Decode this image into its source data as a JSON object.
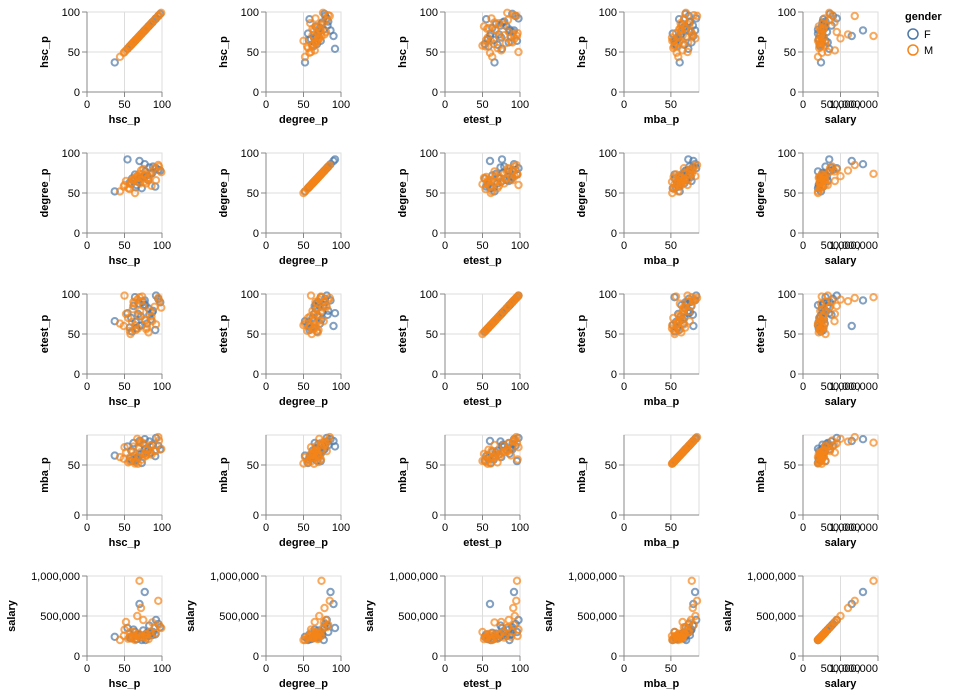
{
  "chart_data": {
    "type": "scatter",
    "layout": "scatter-matrix",
    "fields": [
      "hsc_p",
      "degree_p",
      "etest_p",
      "mba_p",
      "salary"
    ],
    "domains": {
      "hsc_p": {
        "min": 0,
        "max": 100,
        "ticks": [
          0,
          50,
          100
        ],
        "tick_labels": [
          "0",
          "50",
          "100"
        ]
      },
      "degree_p": {
        "min": 0,
        "max": 100,
        "ticks": [
          0,
          50,
          100
        ],
        "tick_labels": [
          "0",
          "50",
          "100"
        ]
      },
      "etest_p": {
        "min": 0,
        "max": 100,
        "ticks": [
          0,
          50,
          100
        ],
        "tick_labels": [
          "0",
          "50",
          "100"
        ]
      },
      "mba_p": {
        "min": 0,
        "max": 80,
        "ticks": [
          0,
          50
        ],
        "tick_labels": [
          "0",
          "50"
        ]
      },
      "salary": {
        "min": 0,
        "max": 1000000,
        "ticks": [
          0,
          500000,
          1000000
        ],
        "tick_labels": [
          "0",
          "500,000",
          "1,000,000"
        ]
      }
    },
    "legend": {
      "title": "gender",
      "position": "top-right",
      "items": [
        {
          "label": "F",
          "color": "#4c78a8"
        },
        {
          "label": "M",
          "color": "#f58518"
        }
      ]
    },
    "grid": true,
    "mark": "open-circle",
    "records": [
      {
        "gender": "F",
        "hsc_p": 91,
        "degree_p": 58,
        "etest_p": 55,
        "mba_p": 58.8,
        "salary": 270000
      },
      {
        "gender": "F",
        "hsc_p": 78,
        "degree_p": 77,
        "etest_p": 86,
        "mba_p": 66.3,
        "salary": 200000
      },
      {
        "gender": "F",
        "hsc_p": 68,
        "degree_p": 64,
        "etest_p": 75,
        "mba_p": 57.8,
        "salary": 250000
      },
      {
        "gender": "F",
        "hsc_p": 37,
        "degree_p": 52,
        "etest_p": 66,
        "mba_p": 59.4,
        "salary": 240000
      },
      {
        "gender": "F",
        "hsc_p": 64,
        "degree_p": 73,
        "etest_p": 96,
        "mba_p": 53.9,
        "salary": 300000
      },
      {
        "gender": "F",
        "hsc_p": 97.7,
        "degree_p": 78,
        "etest_p": 89.7,
        "mba_p": 65.6,
        "salary": 360000
      },
      {
        "gender": "F",
        "hsc_p": 88,
        "degree_p": 83,
        "etest_p": 79,
        "mba_p": 69.7,
        "salary": 300000
      },
      {
        "gender": "F",
        "hsc_p": 76,
        "degree_p": 71,
        "etest_p": 86,
        "mba_p": 61.3,
        "salary": 260000
      },
      {
        "gender": "F",
        "hsc_p": 60,
        "degree_p": 68,
        "etest_p": 53,
        "mba_p": 54.3,
        "salary": 240000
      },
      {
        "gender": "F",
        "hsc_p": 70,
        "degree_p": 90,
        "etest_p": 60,
        "mba_p": 74,
        "salary": 650000
      },
      {
        "gender": "F",
        "hsc_p": 82,
        "degree_p": 66,
        "etest_p": 82,
        "mba_p": 65.1,
        "salary": 250000
      },
      {
        "gender": "F",
        "hsc_p": 59,
        "degree_p": 62,
        "etest_p": 70,
        "mba_p": 64.3,
        "salary": 220000
      },
      {
        "gender": "F",
        "hsc_p": 75,
        "degree_p": 70,
        "etest_p": 90,
        "mba_p": 71.2,
        "salary": 320000
      },
      {
        "gender": "F",
        "hsc_p": 85,
        "degree_p": 74,
        "etest_p": 68,
        "mba_p": 62.4,
        "salary": 280000
      },
      {
        "gender": "F",
        "hsc_p": 54,
        "degree_p": 92,
        "etest_p": 76,
        "mba_p": 68.6,
        "salary": 350000
      },
      {
        "gender": "F",
        "hsc_p": 95,
        "degree_p": 79,
        "etest_p": 94,
        "mba_p": 69.2,
        "salary": 400000
      },
      {
        "gender": "F",
        "hsc_p": 66,
        "degree_p": 60,
        "etest_p": 57,
        "mba_p": 57.1,
        "salary": 210000
      },
      {
        "gender": "F",
        "hsc_p": 72,
        "degree_p": 69,
        "etest_p": 72,
        "mba_p": 60.5,
        "salary": 230000
      },
      {
        "gender": "F",
        "hsc_p": 80,
        "degree_p": 72,
        "etest_p": 63,
        "mba_p": 63.2,
        "salary": 290000
      },
      {
        "gender": "F",
        "hsc_p": 62,
        "degree_p": 65,
        "etest_p": 85,
        "mba_p": 72,
        "salary": 330000
      },
      {
        "gender": "F",
        "hsc_p": 87,
        "degree_p": 75,
        "etest_p": 77,
        "mba_p": 70.3,
        "salary": 260000
      },
      {
        "gender": "F",
        "hsc_p": 73,
        "degree_p": 56,
        "etest_p": 61,
        "mba_p": 52,
        "salary": 200000
      },
      {
        "gender": "F",
        "hsc_p": 92,
        "degree_p": 81,
        "etest_p": 98,
        "mba_p": 77,
        "salary": 450000
      },
      {
        "gender": "F",
        "hsc_p": 57,
        "degree_p": 63,
        "etest_p": 58,
        "mba_p": 56.5,
        "salary": 230000
      },
      {
        "gender": "F",
        "hsc_p": 69,
        "degree_p": 67,
        "etest_p": 88,
        "mba_p": 66.9,
        "salary": 270000
      },
      {
        "gender": "F",
        "hsc_p": 83,
        "degree_p": 82,
        "etest_p": 74,
        "mba_p": 73.5,
        "salary": 380000
      },
      {
        "gender": "F",
        "hsc_p": 65,
        "degree_p": 57,
        "etest_p": 65,
        "mba_p": 55.4,
        "salary": 210000
      },
      {
        "gender": "F",
        "hsc_p": 77,
        "degree_p": 86,
        "etest_p": 92,
        "mba_p": 75.8,
        "salary": 800000
      },
      {
        "gender": "M",
        "hsc_p": 78.3,
        "degree_p": 72,
        "etest_p": 67,
        "mba_p": 58.8,
        "salary": 270000
      },
      {
        "gender": "M",
        "hsc_p": 68,
        "degree_p": 64,
        "etest_p": 57,
        "mba_p": 51.2,
        "salary": 250000
      },
      {
        "gender": "M",
        "hsc_p": 52,
        "degree_p": 65,
        "etest_p": 75,
        "mba_p": 62.5,
        "salary": 425000
      },
      {
        "gender": "M",
        "hsc_p": 73.6,
        "degree_p": 73.3,
        "etest_p": 96.8,
        "mba_p": 55.5,
        "salary": 250000
      },
      {
        "gender": "M",
        "hsc_p": 49,
        "degree_p": 58,
        "etest_p": 60,
        "mba_p": 56.2,
        "salary": 252000
      },
      {
        "gender": "M",
        "hsc_p": 77,
        "degree_p": 64,
        "etest_p": 68,
        "mba_p": 61.7,
        "salary": 240000
      },
      {
        "gender": "M",
        "hsc_p": 62,
        "degree_p": 66,
        "etest_p": 90,
        "mba_p": 68.4,
        "salary": 300000
      },
      {
        "gender": "M",
        "hsc_p": 90,
        "degree_p": 81,
        "etest_p": 84,
        "mba_p": 63.9,
        "salary": 360000
      },
      {
        "gender": "M",
        "hsc_p": 65,
        "degree_p": 70,
        "etest_p": 55,
        "mba_p": 53,
        "salary": 218000
      },
      {
        "gender": "M",
        "hsc_p": 70,
        "degree_p": 74,
        "etest_p": 96,
        "mba_p": 72.3,
        "salary": 940000
      },
      {
        "gender": "M",
        "hsc_p": 86,
        "degree_p": 59,
        "etest_p": 72,
        "mba_p": 60.4,
        "salary": 265000
      },
      {
        "gender": "M",
        "hsc_p": 44,
        "degree_p": 52,
        "etest_p": 63,
        "mba_p": 57.9,
        "salary": 200000
      },
      {
        "gender": "M",
        "hsc_p": 96,
        "degree_p": 83,
        "etest_p": 92,
        "mba_p": 74.5,
        "salary": 390000
      },
      {
        "gender": "M",
        "hsc_p": 58,
        "degree_p": 61,
        "etest_p": 50,
        "mba_p": 54.1,
        "salary": 300000
      },
      {
        "gender": "M",
        "hsc_p": 80,
        "degree_p": 67,
        "etest_p": 58,
        "mba_p": 65.3,
        "salary": 276000
      },
      {
        "gender": "M",
        "hsc_p": 63,
        "degree_p": 68,
        "etest_p": 88,
        "mba_p": 59.6,
        "salary": 240000
      },
      {
        "gender": "M",
        "hsc_p": 87,
        "degree_p": 77,
        "etest_p": 66,
        "mba_p": 70.1,
        "salary": 420000
      },
      {
        "gender": "M",
        "hsc_p": 71,
        "degree_p": 62,
        "etest_p": 79,
        "mba_p": 62.7,
        "salary": 230000
      },
      {
        "gender": "M",
        "hsc_p": 55,
        "degree_p": 56,
        "etest_p": 70,
        "mba_p": 52.6,
        "salary": 216000
      },
      {
        "gender": "M",
        "hsc_p": 99,
        "degree_p": 76,
        "etest_p": 83,
        "mba_p": 66,
        "salary": 350000
      },
      {
        "gender": "M",
        "hsc_p": 67,
        "degree_p": 71,
        "etest_p": 93,
        "mba_p": 76.2,
        "salary": 500000
      },
      {
        "gender": "M",
        "hsc_p": 82,
        "degree_p": 69,
        "etest_p": 52,
        "mba_p": 61.1,
        "salary": 210000
      },
      {
        "gender": "M",
        "hsc_p": 60,
        "degree_p": 63,
        "etest_p": 65,
        "mba_p": 57.3,
        "salary": 220000
      },
      {
        "gender": "M",
        "hsc_p": 75,
        "degree_p": 80,
        "etest_p": 85,
        "mba_p": 71.5,
        "salary": 450000
      },
      {
        "gender": "M",
        "hsc_p": 92,
        "degree_p": 66,
        "etest_p": 62,
        "mba_p": 64.1,
        "salary": 285000
      },
      {
        "gender": "M",
        "hsc_p": 50,
        "degree_p": 60,
        "etest_p": 98,
        "mba_p": 67.8,
        "salary": 330000
      },
      {
        "gender": "M",
        "hsc_p": 84,
        "degree_p": 73,
        "etest_p": 78,
        "mba_p": 69.5,
        "salary": 300000
      },
      {
        "gender": "M",
        "hsc_p": 57,
        "degree_p": 55,
        "etest_p": 54,
        "mba_p": 53.8,
        "salary": 240000
      },
      {
        "gender": "M",
        "hsc_p": 72,
        "degree_p": 78,
        "etest_p": 91,
        "mba_p": 73.4,
        "salary": 600000
      },
      {
        "gender": "M",
        "hsc_p": 64,
        "degree_p": 50,
        "etest_p": 61,
        "mba_p": 51.5,
        "salary": 200000
      },
      {
        "gender": "M",
        "hsc_p": 95,
        "degree_p": 85,
        "etest_p": 95,
        "mba_p": 77.9,
        "salary": 690000
      },
      {
        "gender": "M",
        "hsc_p": 61,
        "degree_p": 67,
        "etest_p": 81,
        "mba_p": 63.6,
        "salary": 255000
      },
      {
        "gender": "M",
        "hsc_p": 69,
        "degree_p": 70,
        "etest_p": 73,
        "mba_p": 58.2,
        "salary": 280000
      },
      {
        "gender": "M",
        "hsc_p": 79,
        "degree_p": 62,
        "etest_p": 56,
        "mba_p": 60,
        "salary": 230000
      }
    ]
  }
}
